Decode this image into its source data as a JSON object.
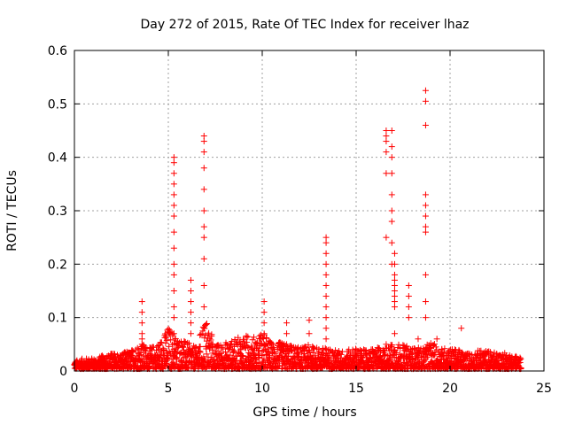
{
  "chart_data": {
    "type": "scatter",
    "title": "Day 272 of 2015, Rate Of TEC Index for receiver lhaz",
    "xlabel": "GPS time / hours",
    "ylabel": "ROTI / TECUs",
    "xlim": [
      0,
      25
    ],
    "ylim": [
      0,
      0.6
    ],
    "x_ticks": [
      "0",
      "5",
      "10",
      "15",
      "20",
      "25"
    ],
    "y_ticks": [
      "0",
      "0.1",
      "0.2",
      "0.3",
      "0.4",
      "0.5",
      "0.6"
    ],
    "grid": true,
    "marker": "+",
    "color": "#ff0000",
    "series": [
      {
        "name": "ROTI",
        "x": [
          3.6,
          3.6,
          3.6,
          3.6,
          3.6,
          3.6,
          5.3,
          5.3,
          5.3,
          5.3,
          5.3,
          5.3,
          5.3,
          5.3,
          5.3,
          5.3,
          5.3,
          5.3,
          5.3,
          5.3,
          5.3,
          6.2,
          6.2,
          6.2,
          6.2,
          6.2,
          6.2,
          6.9,
          6.9,
          6.9,
          6.9,
          6.9,
          6.9,
          6.9,
          6.9,
          6.9,
          6.9,
          6.9,
          6.9,
          10.1,
          10.1,
          10.1,
          10.1,
          10.1,
          11.3,
          11.3,
          11.3,
          12.5,
          12.5,
          13.4,
          13.4,
          13.4,
          13.4,
          13.4,
          13.4,
          13.4,
          13.4,
          13.4,
          13.4,
          13.4,
          13.4,
          16.6,
          16.6,
          16.6,
          16.6,
          16.6,
          16.6,
          16.6,
          16.9,
          16.9,
          16.9,
          16.9,
          16.9,
          16.9,
          16.9,
          16.9,
          16.9,
          17.05,
          17.05,
          17.05,
          17.05,
          17.05,
          17.05,
          17.05,
          17.05,
          17.05,
          17.05,
          17.8,
          17.8,
          17.8,
          17.8,
          18.7,
          18.7,
          18.7,
          18.7,
          18.7,
          18.7,
          18.7,
          18.7,
          18.7,
          18.7,
          18.7,
          18.3,
          19.3,
          20.6
        ],
        "y": [
          0.13,
          0.11,
          0.09,
          0.07,
          0.06,
          0.05,
          0.4,
          0.39,
          0.37,
          0.35,
          0.33,
          0.31,
          0.29,
          0.26,
          0.23,
          0.2,
          0.18,
          0.15,
          0.12,
          0.1,
          0.07,
          0.17,
          0.15,
          0.13,
          0.11,
          0.09,
          0.07,
          0.44,
          0.43,
          0.41,
          0.38,
          0.34,
          0.3,
          0.27,
          0.25,
          0.21,
          0.16,
          0.12,
          0.08,
          0.13,
          0.11,
          0.09,
          0.07,
          0.05,
          0.09,
          0.07,
          0.05,
          0.095,
          0.07,
          0.25,
          0.24,
          0.22,
          0.2,
          0.18,
          0.16,
          0.14,
          0.12,
          0.1,
          0.08,
          0.06,
          0.04,
          0.45,
          0.44,
          0.43,
          0.41,
          0.37,
          0.25,
          0.05,
          0.45,
          0.42,
          0.4,
          0.37,
          0.33,
          0.3,
          0.28,
          0.24,
          0.2,
          0.22,
          0.2,
          0.18,
          0.17,
          0.16,
          0.15,
          0.14,
          0.13,
          0.12,
          0.07,
          0.16,
          0.14,
          0.12,
          0.1,
          0.525,
          0.505,
          0.46,
          0.33,
          0.31,
          0.29,
          0.27,
          0.26,
          0.18,
          0.13,
          0.1,
          0.06,
          0.06,
          0.08
        ]
      }
    ],
    "background_band": {
      "description": "dense low-level ROTI scatter across the full day",
      "x": [
        0,
        0.5,
        1,
        1.5,
        2,
        2.5,
        3,
        3.5,
        4,
        4.5,
        5,
        5.5,
        6,
        6.5,
        7,
        7.5,
        8,
        8.5,
        9,
        9.5,
        10,
        10.5,
        11,
        11.5,
        12,
        12.5,
        13,
        13.5,
        14,
        14.5,
        15,
        15.5,
        16,
        16.5,
        17,
        17.5,
        18,
        18.5,
        19,
        19.5,
        20,
        20.5,
        21,
        21.5,
        22,
        22.5,
        23,
        23.5,
        23.8
      ],
      "y": [
        0.015,
        0.02,
        0.02,
        0.025,
        0.03,
        0.03,
        0.035,
        0.05,
        0.04,
        0.05,
        0.08,
        0.06,
        0.05,
        0.04,
        0.1,
        0.045,
        0.05,
        0.055,
        0.065,
        0.06,
        0.07,
        0.05,
        0.05,
        0.045,
        0.04,
        0.045,
        0.04,
        0.04,
        0.035,
        0.035,
        0.04,
        0.035,
        0.04,
        0.04,
        0.05,
        0.045,
        0.04,
        0.04,
        0.05,
        0.04,
        0.04,
        0.035,
        0.03,
        0.035,
        0.035,
        0.03,
        0.03,
        0.025,
        0.02
      ]
    }
  }
}
